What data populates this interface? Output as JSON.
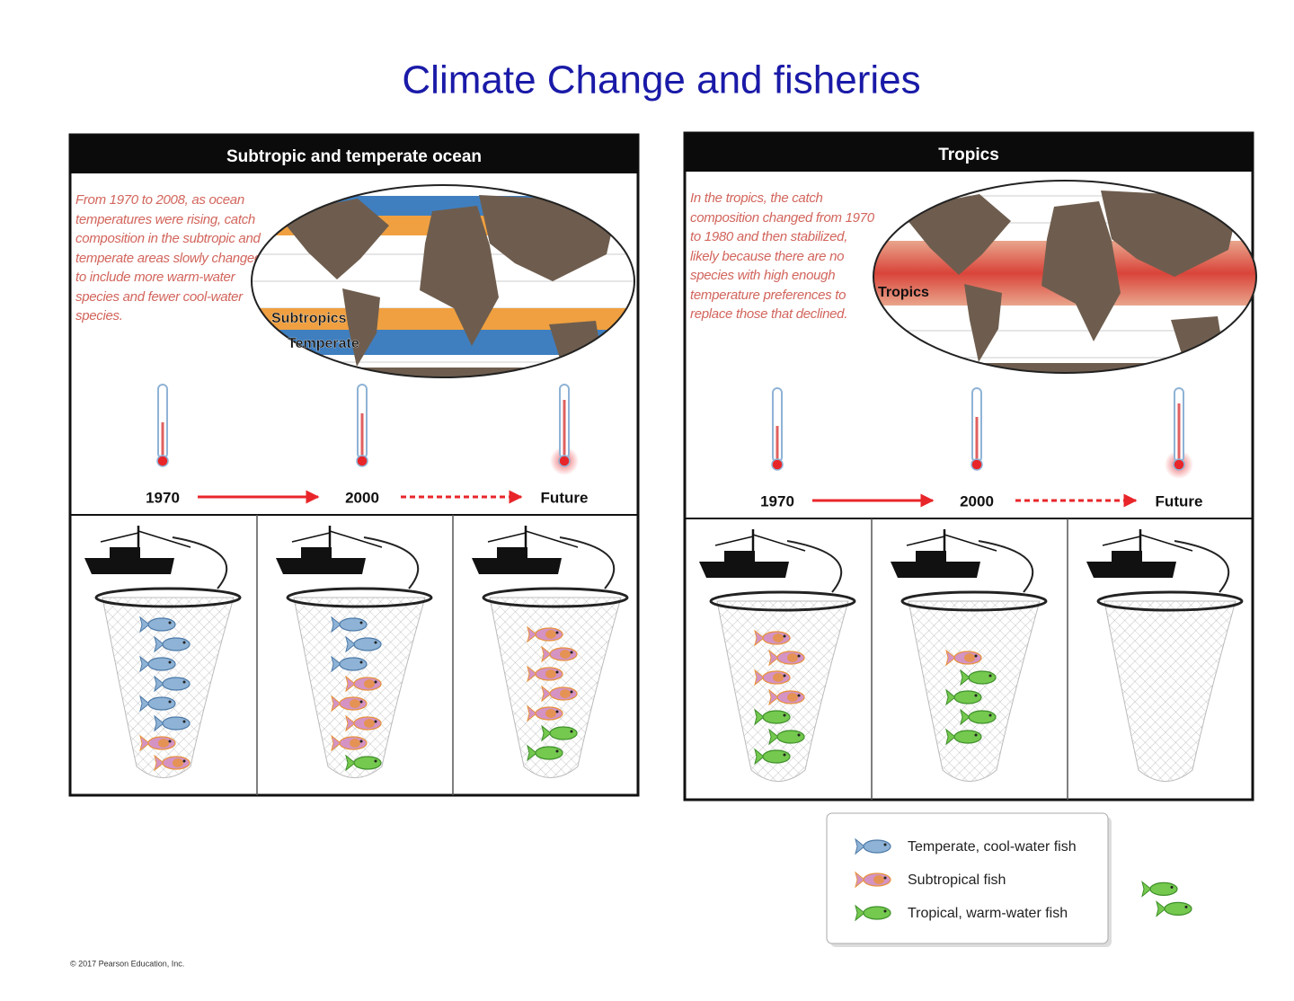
{
  "title": "Climate Change and fisheries",
  "panels": [
    {
      "header": "Subtropic and temperate ocean",
      "description": "From 1970 to 2008, as ocean temperatures were rising, catch composition in the subtropic and temperate areas slowly changed to include more warm-water species and fewer cool-water species.",
      "map_labels": [
        "Subtropics",
        "Temperate"
      ],
      "timeline": [
        "1970",
        "2000",
        "Future"
      ]
    },
    {
      "header": "Tropics",
      "description": "In the tropics, the catch composition changed from 1970 to 1980 and then stabilized, likely because there are no species with high enough temperature preferences to replace those that declined.",
      "map_labels": [
        "Tropics"
      ],
      "timeline": [
        "1970",
        "2000",
        "Future"
      ]
    }
  ],
  "legend": [
    "Temperate, cool-water fish",
    "Subtropical  fish",
    "Tropical, warm-water fish"
  ],
  "copyright": "© 2017 Pearson Education, Inc."
}
